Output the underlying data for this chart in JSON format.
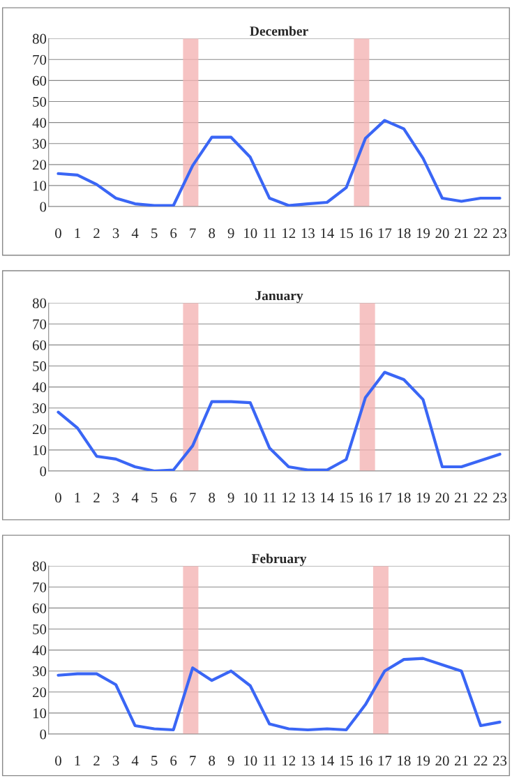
{
  "chart_data": [
    {
      "type": "line",
      "title": "December",
      "x": [
        0,
        1,
        2,
        3,
        4,
        5,
        6,
        7,
        8,
        9,
        10,
        11,
        12,
        13,
        14,
        15,
        16,
        17,
        18,
        19,
        20,
        21,
        22,
        23
      ],
      "xlim": [
        -0.5,
        23.5
      ],
      "xticks": [
        0,
        1,
        2,
        3,
        4,
        5,
        6,
        7,
        8,
        9,
        10,
        11,
        12,
        13,
        14,
        15,
        16,
        17,
        18,
        19,
        20,
        21,
        22,
        23
      ],
      "ylim": [
        0,
        80
      ],
      "yticks": [
        0,
        10,
        20,
        30,
        40,
        50,
        60,
        70,
        80
      ],
      "grid": "y",
      "marker": "none",
      "line_style": "solid",
      "series": [
        {
          "color": "#3a66f5",
          "values": [
            15.7,
            15,
            10.5,
            4,
            1.3,
            0.5,
            0.5,
            19.5,
            33,
            33,
            23.5,
            4,
            0.5,
            1.3,
            2,
            9,
            32.5,
            41,
            37,
            23,
            4,
            2.5,
            4,
            4
          ]
        }
      ],
      "bands": [
        {
          "axis": "x",
          "from": 6.5,
          "to": 7.3,
          "color": "#f4b4b4"
        },
        {
          "axis": "x",
          "from": 15.4,
          "to": 16.2,
          "color": "#f4b4b4"
        }
      ]
    },
    {
      "type": "line",
      "title": "January",
      "x": [
        0,
        1,
        2,
        3,
        4,
        5,
        6,
        7,
        8,
        9,
        10,
        11,
        12,
        13,
        14,
        15,
        16,
        17,
        18,
        19,
        20,
        21,
        22,
        23
      ],
      "xlim": [
        -0.5,
        23.5
      ],
      "xticks": [
        0,
        1,
        2,
        3,
        4,
        5,
        6,
        7,
        8,
        9,
        10,
        11,
        12,
        13,
        14,
        15,
        16,
        17,
        18,
        19,
        20,
        21,
        22,
        23
      ],
      "ylim": [
        0,
        80
      ],
      "yticks": [
        0,
        10,
        20,
        30,
        40,
        50,
        60,
        70,
        80
      ],
      "grid": "y",
      "marker": "none",
      "line_style": "solid",
      "series": [
        {
          "color": "#3a66f5",
          "values": [
            28,
            20.5,
            7,
            5.7,
            2,
            0,
            0.5,
            12,
            33,
            33,
            32.5,
            11,
            2,
            0.5,
            0.5,
            5.5,
            35,
            47,
            43.5,
            34,
            2,
            2,
            5,
            8
          ]
        }
      ],
      "bands": [
        {
          "axis": "x",
          "from": 6.5,
          "to": 7.3,
          "color": "#f4b4b4"
        },
        {
          "axis": "x",
          "from": 15.7,
          "to": 16.5,
          "color": "#f4b4b4"
        }
      ]
    },
    {
      "type": "line",
      "title": "February",
      "x": [
        0,
        1,
        2,
        3,
        4,
        5,
        6,
        7,
        8,
        9,
        10,
        11,
        12,
        13,
        14,
        15,
        16,
        17,
        18,
        19,
        20,
        21,
        22,
        23
      ],
      "xlim": [
        -0.5,
        23.5
      ],
      "xticks": [
        0,
        1,
        2,
        3,
        4,
        5,
        6,
        7,
        8,
        9,
        10,
        11,
        12,
        13,
        14,
        15,
        16,
        17,
        18,
        19,
        20,
        21,
        22,
        23
      ],
      "ylim": [
        0,
        80
      ],
      "yticks": [
        0,
        10,
        20,
        30,
        40,
        50,
        60,
        70,
        80
      ],
      "grid": "y",
      "marker": "none",
      "line_style": "solid",
      "series": [
        {
          "color": "#3a66f5",
          "values": [
            28,
            28.7,
            28.7,
            23.5,
            4,
            2.5,
            2,
            31.5,
            25.5,
            30,
            23,
            4.8,
            2.5,
            2,
            2.5,
            2,
            14,
            30,
            35.5,
            36,
            33,
            30,
            4,
            5.7
          ]
        }
      ],
      "bands": [
        {
          "axis": "x",
          "from": 6.5,
          "to": 7.3,
          "color": "#f4b4b4"
        },
        {
          "axis": "x",
          "from": 16.4,
          "to": 17.2,
          "color": "#f4b4b4"
        }
      ]
    }
  ]
}
